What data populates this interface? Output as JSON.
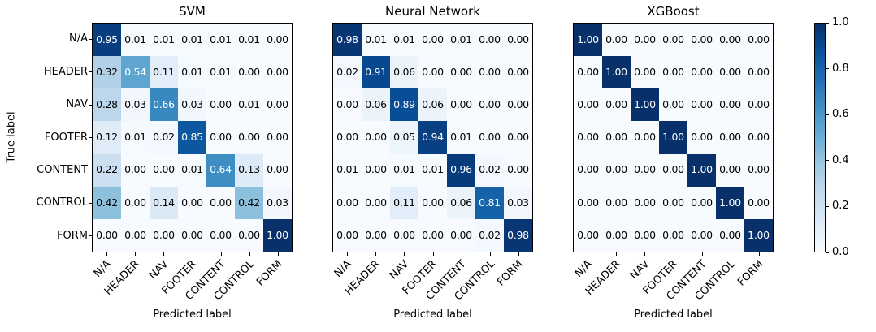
{
  "figure": {
    "background": "#ffffff",
    "text_color": "#000000",
    "colormap_stops": [
      "#f7fbff",
      "#deebf7",
      "#c6dbef",
      "#9ecae1",
      "#6baed6",
      "#4292c6",
      "#2171b5",
      "#08519c",
      "#08306b"
    ]
  },
  "chart_data": [
    {
      "type": "heatmap",
      "title": "SVM",
      "xlabel": "Predicted label",
      "ylabel": "True label",
      "colormap": "Blues",
      "vmin": 0.0,
      "vmax": 1.0,
      "show_y_ticks": true,
      "x_categories": [
        "N/A",
        "HEADER",
        "NAV",
        "FOOTER",
        "CONTENT",
        "CONTROL",
        "FORM"
      ],
      "y_categories": [
        "N/A",
        "HEADER",
        "NAV",
        "FOOTER",
        "CONTENT",
        "CONTROL",
        "FORM"
      ],
      "matrix": [
        [
          0.95,
          0.01,
          0.01,
          0.01,
          0.01,
          0.01,
          0.0
        ],
        [
          0.32,
          0.54,
          0.11,
          0.01,
          0.01,
          0.0,
          0.0
        ],
        [
          0.28,
          0.03,
          0.66,
          0.03,
          0.0,
          0.01,
          0.0
        ],
        [
          0.12,
          0.01,
          0.02,
          0.85,
          0.0,
          0.0,
          0.0
        ],
        [
          0.22,
          0.0,
          0.0,
          0.01,
          0.64,
          0.13,
          0.0
        ],
        [
          0.42,
          0.0,
          0.14,
          0.0,
          0.0,
          0.42,
          0.03
        ],
        [
          0.0,
          0.0,
          0.0,
          0.0,
          0.0,
          0.0,
          1.0
        ]
      ]
    },
    {
      "type": "heatmap",
      "title": "Neural Network",
      "xlabel": "Predicted label",
      "colormap": "Blues",
      "vmin": 0.0,
      "vmax": 1.0,
      "show_y_ticks": false,
      "x_categories": [
        "N/A",
        "HEADER",
        "NAV",
        "FOOTER",
        "CONTENT",
        "CONTROL",
        "FORM"
      ],
      "y_categories": [
        "N/A",
        "HEADER",
        "NAV",
        "FOOTER",
        "CONTENT",
        "CONTROL",
        "FORM"
      ],
      "matrix": [
        [
          0.98,
          0.01,
          0.01,
          0.0,
          0.01,
          0.0,
          0.0
        ],
        [
          0.02,
          0.91,
          0.06,
          0.0,
          0.0,
          0.0,
          0.0
        ],
        [
          0.0,
          0.06,
          0.89,
          0.06,
          0.0,
          0.0,
          0.0
        ],
        [
          0.0,
          0.0,
          0.05,
          0.94,
          0.01,
          0.0,
          0.0
        ],
        [
          0.01,
          0.0,
          0.01,
          0.01,
          0.96,
          0.02,
          0.0
        ],
        [
          0.0,
          0.0,
          0.11,
          0.0,
          0.06,
          0.81,
          0.03
        ],
        [
          0.0,
          0.0,
          0.0,
          0.0,
          0.0,
          0.02,
          0.98
        ]
      ]
    },
    {
      "type": "heatmap",
      "title": "XGBoost",
      "xlabel": "Predicted label",
      "colormap": "Blues",
      "vmin": 0.0,
      "vmax": 1.0,
      "show_y_ticks": false,
      "x_categories": [
        "N/A",
        "HEADER",
        "NAV",
        "FOOTER",
        "CONTENT",
        "CONTROL",
        "FORM"
      ],
      "y_categories": [
        "N/A",
        "HEADER",
        "NAV",
        "FOOTER",
        "CONTENT",
        "CONTROL",
        "FORM"
      ],
      "matrix": [
        [
          1.0,
          0.0,
          0.0,
          0.0,
          0.0,
          0.0,
          0.0
        ],
        [
          0.0,
          1.0,
          0.0,
          0.0,
          0.0,
          0.0,
          0.0
        ],
        [
          0.0,
          0.0,
          1.0,
          0.0,
          0.0,
          0.0,
          0.0
        ],
        [
          0.0,
          0.0,
          0.0,
          1.0,
          0.0,
          0.0,
          0.0
        ],
        [
          0.0,
          0.0,
          0.0,
          0.0,
          1.0,
          0.0,
          0.0
        ],
        [
          0.0,
          0.0,
          0.0,
          0.0,
          0.0,
          1.0,
          0.0
        ],
        [
          0.0,
          0.0,
          0.0,
          0.0,
          0.0,
          0.0,
          1.0
        ]
      ]
    }
  ],
  "colorbar": {
    "min": 0.0,
    "max": 1.0,
    "ticks": [
      "0.0",
      "0.2",
      "0.4",
      "0.6",
      "0.8",
      "1.0"
    ]
  }
}
